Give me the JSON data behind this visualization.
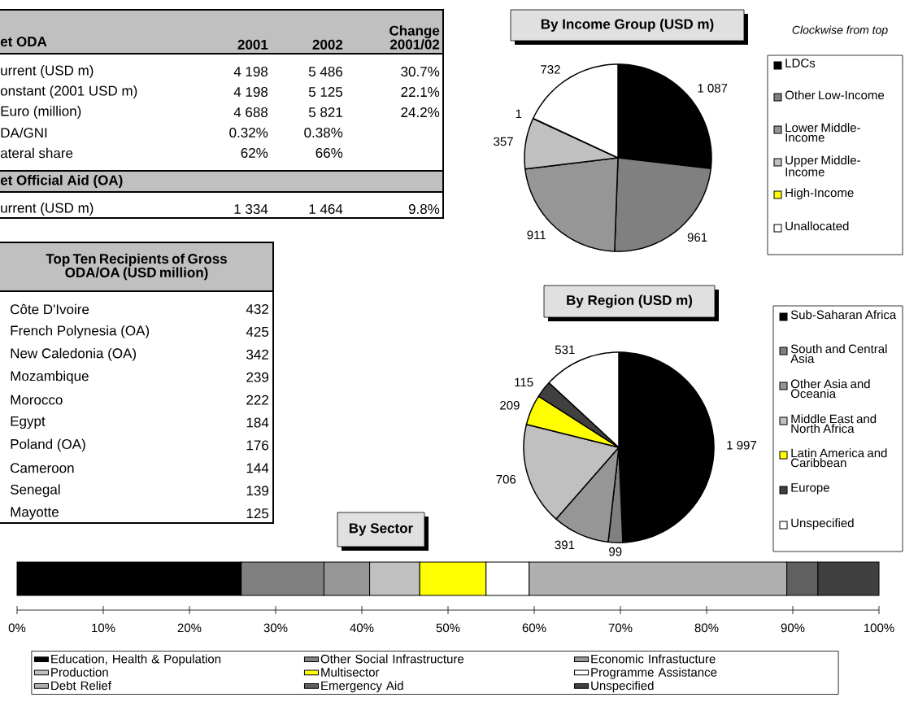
{
  "chart_data": [
    {
      "type": "other",
      "title": "et ODA",
      "categories": [
        "urrent (USD m)",
        "onstant (2001 USD m)",
        "Euro (million)",
        "DA/GNI",
        "ateral share",
        "et Official Aid (OA)",
        "urrent (USD m)"
      ],
      "series": [
        {
          "name": "2001",
          "values": [
            4198,
            4198,
            4688,
            0.32,
            62,
            null,
            1334
          ],
          "value_labels": [
            "4 198",
            "4 198",
            "4 688",
            "0.32%",
            "62%",
            null,
            "1 334"
          ]
        },
        {
          "name": "2002",
          "values": [
            5486,
            5125,
            5821,
            0.38,
            66,
            null,
            1464
          ],
          "value_labels": [
            "5 486",
            "5 125",
            "5 821",
            "0.38%",
            "66%",
            null,
            "1 464"
          ]
        },
        {
          "name": "Change 2001/02",
          "values": [
            30.7,
            22.1,
            24.2,
            null,
            null,
            null,
            9.8
          ],
          "value_labels": [
            "30.7%",
            "22.1%",
            "24.2%",
            null,
            null,
            null,
            "9.8%"
          ]
        }
      ]
    },
    {
      "type": "other",
      "title": "Top Ten Recipients of Gross ODA/OA (USD million)",
      "categories": [
        "Côte D'Ivoire",
        "French Polynesia (OA)",
        "New Caledonia (OA)",
        "Mozambique",
        "Morocco",
        "Egypt",
        "Poland (OA)",
        "Cameroon",
        "Senegal",
        "Mayotte"
      ],
      "values": [
        432,
        425,
        342,
        239,
        222,
        184,
        176,
        144,
        139,
        125
      ],
      "data_labels": true
    },
    {
      "type": "pie",
      "title": "By Income Group (USD m)",
      "annotations": [
        "Clockwise from top"
      ],
      "categories": [
        "LDCs",
        "Other Low-Income",
        "Lower Middle-Income",
        "Upper Middle-Income",
        "High-Income",
        "Unallocated"
      ],
      "values": [
        1087,
        961,
        911,
        357,
        1,
        732
      ],
      "value_labels": [
        "1 087",
        "961",
        "911",
        "357",
        "1",
        "732"
      ],
      "colors": [
        "#000000",
        "#808080",
        "#969696",
        "#c0c0c0",
        "#ffff00",
        "#ffffff"
      ],
      "legend": "right"
    },
    {
      "type": "pie",
      "title": "By Region (USD m)",
      "categories": [
        "Sub-Saharan Africa",
        "South and Central Asia",
        "Other Asia and Oceania",
        "Middle East and North Africa",
        "Latin America and Caribbean",
        "Europe",
        "Unspecified"
      ],
      "values": [
        1997,
        99,
        391,
        706,
        209,
        115,
        531
      ],
      "value_labels": [
        "1 997",
        "99",
        "391",
        "706",
        "209",
        "115",
        "531"
      ],
      "colors": [
        "#000000",
        "#808080",
        "#969696",
        "#c0c0c0",
        "#ffff00",
        "#404040",
        "#ffffff"
      ],
      "legend": "right"
    },
    {
      "type": "bar",
      "title": "By Sector",
      "orientation": "horizontal",
      "stacked": true,
      "categories": [
        null
      ],
      "xlim": [
        0,
        100
      ],
      "xticks": [
        {
          "value": 0,
          "label": "0%"
        },
        {
          "value": 10,
          "label": "10%"
        },
        {
          "value": 20,
          "label": "20%"
        },
        {
          "value": 30,
          "label": "30%"
        },
        {
          "value": 40,
          "label": "40%"
        },
        {
          "value": 50,
          "label": "50%"
        },
        {
          "value": 60,
          "label": "60%"
        },
        {
          "value": 70,
          "label": "70%"
        },
        {
          "value": 80,
          "label": "80%"
        },
        {
          "value": 90,
          "label": "90%"
        },
        {
          "value": 100,
          "label": "100%"
        }
      ],
      "legend": "bottom",
      "series": [
        {
          "name": "Education, Health & Population",
          "color": "#000000",
          "values": [
            26.0
          ]
        },
        {
          "name": "Other Social Infrastructure",
          "color": "#808080",
          "values": [
            9.6
          ]
        },
        {
          "name": "Economic Infrastucture",
          "color": "#969696",
          "values": [
            5.3
          ]
        },
        {
          "name": "Production",
          "color": "#c0c0c0",
          "values": [
            5.8
          ]
        },
        {
          "name": "Multisector",
          "color": "#ffff00",
          "values": [
            7.7
          ]
        },
        {
          "name": "Programme Assistance",
          "color": "#ffffff",
          "values": [
            5.0
          ]
        },
        {
          "name": "Debt Relief",
          "color": "#b0b0b0",
          "values": [
            29.9
          ]
        },
        {
          "name": "Emergency Aid",
          "color": "#606060",
          "values": [
            3.6
          ]
        },
        {
          "name": "Unspecified",
          "color": "#404040",
          "values": [
            7.1
          ]
        }
      ]
    }
  ]
}
